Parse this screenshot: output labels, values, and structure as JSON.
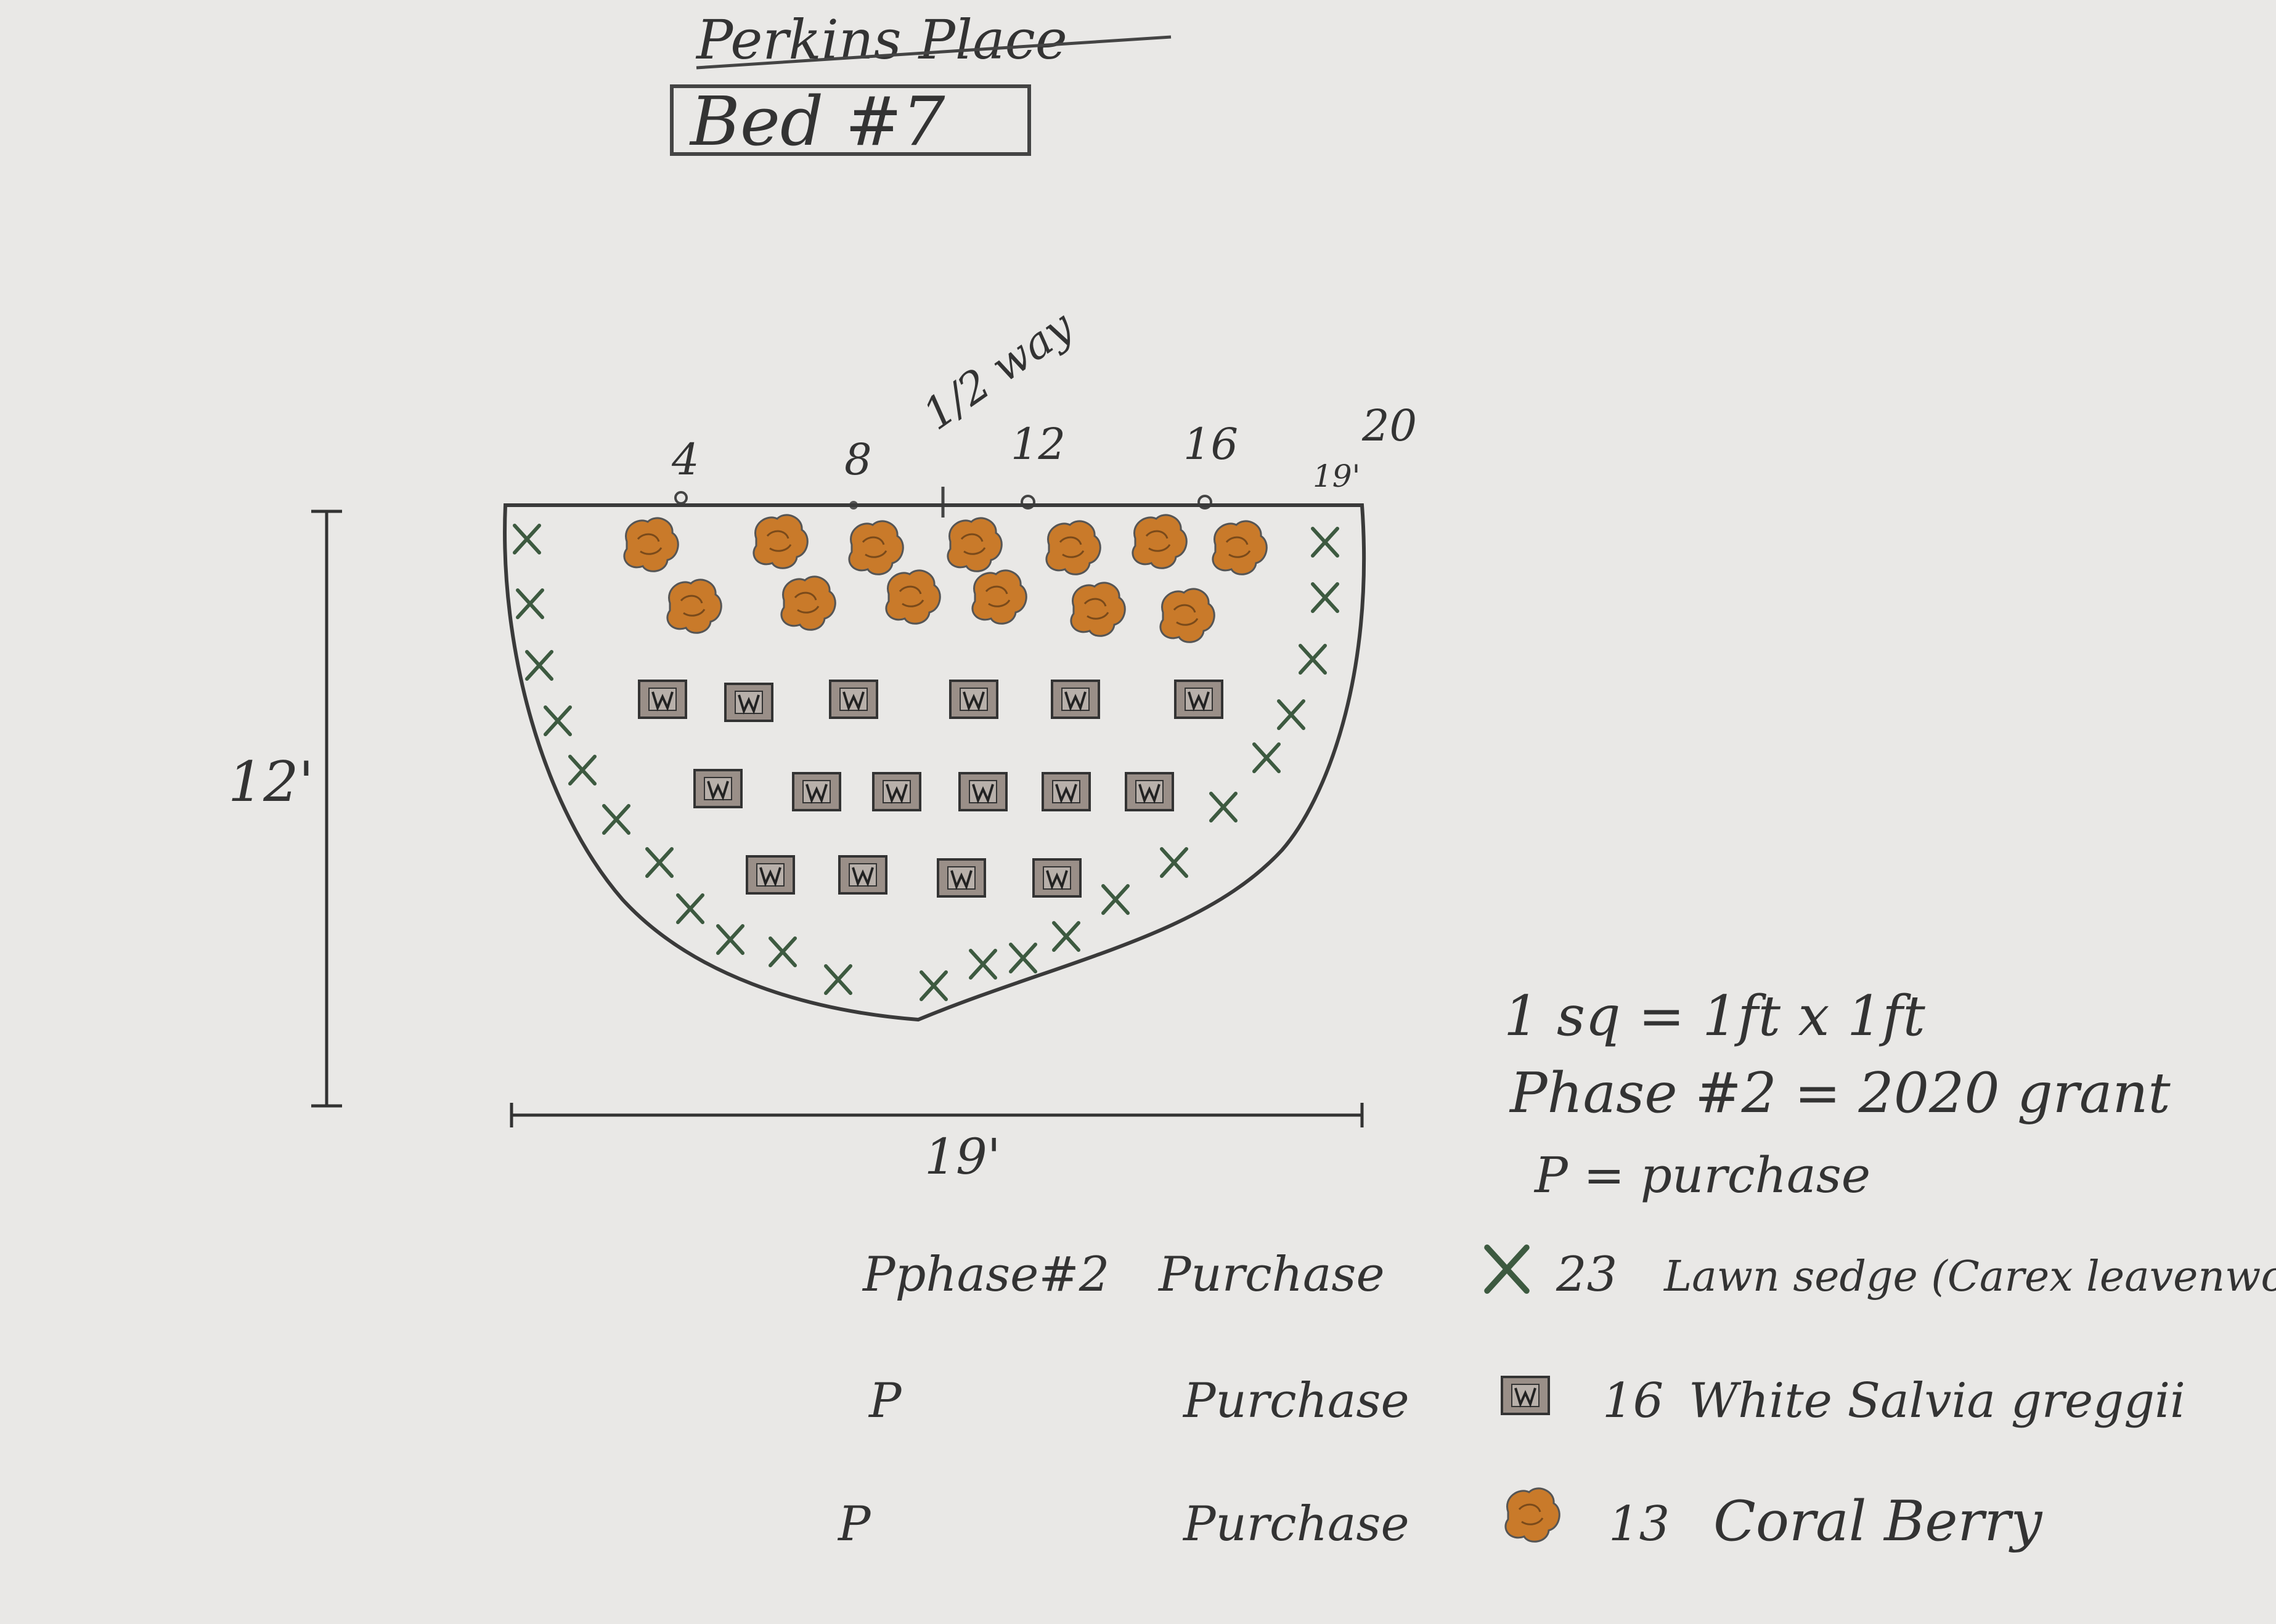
{
  "header": {
    "title": "Perkins Place",
    "bed_label": "Bed #7"
  },
  "dimensions": {
    "height_label": "12'",
    "width_label": "19'",
    "top_marks": [
      "4",
      "8",
      "12",
      "16",
      "20"
    ],
    "halfway_label": "1/2 way",
    "right_edge_label": "19'"
  },
  "notes": {
    "square_scale": "1 sq = 1ft x 1ft",
    "phase_note": "Phase #2 = 2020 grant",
    "purchase_note": "P = purchase"
  },
  "legend": [
    {
      "phase": "Pphase#2",
      "source": "Purchase",
      "symbol": "x-icon",
      "count": "23",
      "plant": "Lawn sedge (Carex leavenworth"
    },
    {
      "phase": "P",
      "source": "Purchase",
      "symbol": "w-box-icon",
      "count": "16",
      "plant": "White Salvia greggii"
    },
    {
      "phase": "P",
      "source": "Purchase",
      "symbol": "coral-blob-icon",
      "count": "13",
      "plant": "Coral Berry"
    }
  ],
  "colors": {
    "paper": "#e9e8e6",
    "pencil": "#3a3a3a",
    "sedge_green": "#3d5a40",
    "coral_orange": "#c97a2a",
    "box_fill": "#9a8f88"
  }
}
